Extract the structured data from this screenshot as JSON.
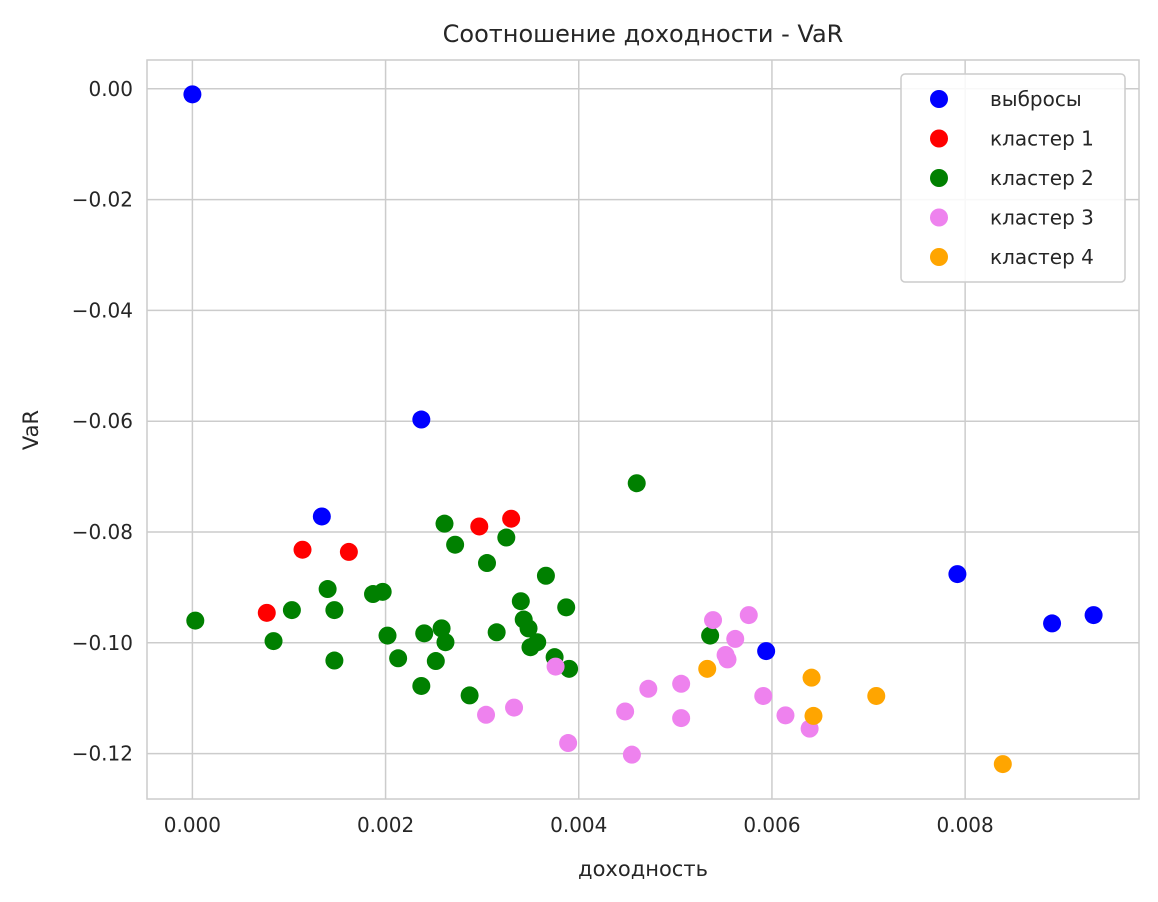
{
  "chart_data": {
    "type": "scatter",
    "title": "Соотношение доходности - VaR",
    "xlabel": "доходность",
    "ylabel": "VaR",
    "xlim": [
      -0.00047,
      0.0098
    ],
    "ylim": [
      -0.1282,
      0.0052
    ],
    "x_ticks": [
      0.0,
      0.002,
      0.004,
      0.006,
      0.008
    ],
    "x_tick_labels": [
      "0.000",
      "0.002",
      "0.004",
      "0.006",
      "0.008"
    ],
    "y_ticks": [
      0.0,
      -0.02,
      -0.04,
      -0.06,
      -0.08,
      -0.1,
      -0.12
    ],
    "y_tick_labels": [
      "0.00",
      "−0.02",
      "−0.04",
      "−0.06",
      "−0.08",
      "−0.10",
      "−0.12"
    ],
    "grid": true,
    "legend_position": "top-right",
    "series": [
      {
        "name": "выбросы",
        "color": "#0000ff",
        "points": [
          [
            0.0,
            -0.001
          ],
          [
            0.00237,
            -0.0597
          ],
          [
            0.00134,
            -0.0772
          ],
          [
            0.00594,
            -0.1015
          ],
          [
            0.00792,
            -0.0876
          ],
          [
            0.0089,
            -0.0965
          ],
          [
            0.00933,
            -0.095
          ]
        ]
      },
      {
        "name": "кластер 1",
        "color": "#ff0000",
        "points": [
          [
            0.00077,
            -0.0946
          ],
          [
            0.00114,
            -0.0832
          ],
          [
            0.00162,
            -0.0836
          ],
          [
            0.00297,
            -0.079
          ],
          [
            0.0033,
            -0.0776
          ]
        ]
      },
      {
        "name": "кластер 2",
        "color": "#008000",
        "points": [
          [
            3e-05,
            -0.096
          ],
          [
            0.00084,
            -0.0997
          ],
          [
            0.00103,
            -0.0941
          ],
          [
            0.0014,
            -0.0903
          ],
          [
            0.00147,
            -0.0941
          ],
          [
            0.00147,
            -0.1032
          ],
          [
            0.00187,
            -0.0912
          ],
          [
            0.00197,
            -0.0908
          ],
          [
            0.00202,
            -0.0987
          ],
          [
            0.00213,
            -0.1028
          ],
          [
            0.00237,
            -0.1078
          ],
          [
            0.0024,
            -0.0983
          ],
          [
            0.00252,
            -0.1033
          ],
          [
            0.00258,
            -0.0974
          ],
          [
            0.00261,
            -0.0785
          ],
          [
            0.00262,
            -0.0999
          ],
          [
            0.00272,
            -0.0823
          ],
          [
            0.00287,
            -0.1095
          ],
          [
            0.00305,
            -0.0856
          ],
          [
            0.00315,
            -0.0981
          ],
          [
            0.00325,
            -0.081
          ],
          [
            0.0034,
            -0.0925
          ],
          [
            0.00343,
            -0.0958
          ],
          [
            0.00348,
            -0.0974
          ],
          [
            0.0035,
            -0.1008
          ],
          [
            0.00357,
            -0.0999
          ],
          [
            0.00366,
            -0.0879
          ],
          [
            0.00375,
            -0.1026
          ],
          [
            0.00387,
            -0.0936
          ],
          [
            0.0039,
            -0.1047
          ],
          [
            0.0046,
            -0.0712
          ],
          [
            0.00536,
            -0.0987
          ]
        ]
      },
      {
        "name": "кластер 3",
        "color": "#ee82ee",
        "points": [
          [
            0.00304,
            -0.113
          ],
          [
            0.00333,
            -0.1117
          ],
          [
            0.00376,
            -0.1043
          ],
          [
            0.00389,
            -0.1181
          ],
          [
            0.00448,
            -0.1124
          ],
          [
            0.00455,
            -0.1202
          ],
          [
            0.00472,
            -0.1083
          ],
          [
            0.00506,
            -0.1074
          ],
          [
            0.00506,
            -0.1136
          ],
          [
            0.00539,
            -0.0959
          ],
          [
            0.00552,
            -0.1022
          ],
          [
            0.00554,
            -0.103
          ],
          [
            0.00562,
            -0.0993
          ],
          [
            0.00576,
            -0.095
          ],
          [
            0.00591,
            -0.1096
          ],
          [
            0.00614,
            -0.1131
          ],
          [
            0.00639,
            -0.1155
          ]
        ]
      },
      {
        "name": "кластер 4",
        "color": "#ffa500",
        "points": [
          [
            0.00533,
            -0.1047
          ],
          [
            0.00641,
            -0.1063
          ],
          [
            0.00643,
            -0.1132
          ],
          [
            0.00708,
            -0.1096
          ],
          [
            0.00839,
            -0.1219
          ]
        ]
      }
    ]
  }
}
